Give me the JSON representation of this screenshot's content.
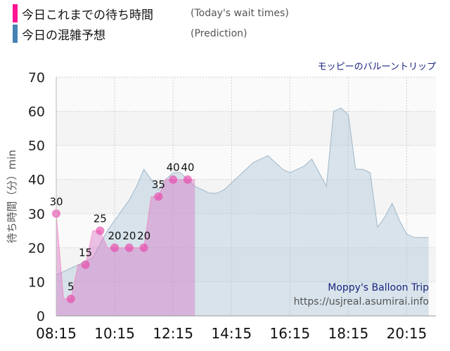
{
  "legend": {
    "today": {
      "label": "今日これまでの待ち時間",
      "sub": "(Today's wait times)",
      "color": "#ff1493"
    },
    "prediction": {
      "label": "今日の混雑予想",
      "sub": "(Prediction)",
      "color": "#4682b4"
    }
  },
  "attraction_name": "モッピーのバルーントリップ",
  "watermark": {
    "line1": "Moppy's Balloon Trip",
    "line2": "https://usjreal.asumirai.info"
  },
  "chart_data": {
    "type": "area",
    "ylabel": "待ち時間（分）min",
    "ylim": [
      0,
      70
    ],
    "yticks": [
      0,
      10,
      20,
      30,
      40,
      50,
      60,
      70
    ],
    "xlim": [
      "08:15",
      "21:15"
    ],
    "xticks": [
      "08:15",
      "10:15",
      "12:15",
      "14:15",
      "16:15",
      "18:15",
      "20:15"
    ],
    "grid": true,
    "series": [
      {
        "name": "今日の混雑予想",
        "color": "#4682b4",
        "x": [
          "08:15",
          "08:30",
          "08:45",
          "09:00",
          "09:15",
          "09:30",
          "09:45",
          "10:00",
          "10:15",
          "10:30",
          "10:45",
          "11:00",
          "11:15",
          "11:30",
          "11:45",
          "12:00",
          "12:15",
          "12:30",
          "12:45",
          "13:00",
          "13:15",
          "13:30",
          "13:45",
          "14:00",
          "14:15",
          "14:30",
          "14:45",
          "15:00",
          "15:15",
          "15:30",
          "15:45",
          "16:00",
          "16:15",
          "16:30",
          "16:45",
          "17:00",
          "17:15",
          "17:30",
          "17:45",
          "18:00",
          "18:15",
          "18:30",
          "18:45",
          "19:00",
          "19:15",
          "19:30",
          "19:45",
          "20:00",
          "20:15",
          "20:30",
          "20:45",
          "21:00"
        ],
        "y": [
          12,
          13,
          14,
          15,
          16,
          17,
          21,
          25,
          28,
          31,
          34,
          38,
          43,
          40,
          37,
          40,
          42,
          42,
          40,
          38,
          37,
          36,
          36,
          37,
          39,
          41,
          43,
          45,
          46,
          47,
          45,
          43,
          42,
          43,
          44,
          46,
          42,
          38,
          60,
          61,
          59,
          43,
          43,
          42,
          26,
          29,
          33,
          28,
          24,
          23,
          23,
          23
        ]
      },
      {
        "name": "今日これまでの待ち時間",
        "color": "#ff1493",
        "x": [
          "08:15",
          "08:30",
          "08:45",
          "09:00",
          "09:15",
          "09:30",
          "09:45",
          "10:00",
          "10:15",
          "10:30",
          "10:45",
          "11:00",
          "11:15",
          "11:30",
          "11:45",
          "12:00",
          "12:15",
          "12:30",
          "12:45",
          "13:00"
        ],
        "y": [
          30,
          5,
          5,
          15,
          15,
          25,
          25,
          20,
          20,
          20,
          20,
          20,
          20,
          35,
          35,
          40,
          40,
          40,
          40,
          40
        ],
        "markers": [
          {
            "x": "08:15",
            "y": 30
          },
          {
            "x": "08:45",
            "y": 5
          },
          {
            "x": "09:15",
            "y": 15
          },
          {
            "x": "09:45",
            "y": 25
          },
          {
            "x": "10:15",
            "y": 20
          },
          {
            "x": "10:45",
            "y": 20
          },
          {
            "x": "11:15",
            "y": 20
          },
          {
            "x": "11:45",
            "y": 35
          },
          {
            "x": "12:15",
            "y": 40
          },
          {
            "x": "12:45",
            "y": 40
          }
        ]
      }
    ]
  }
}
